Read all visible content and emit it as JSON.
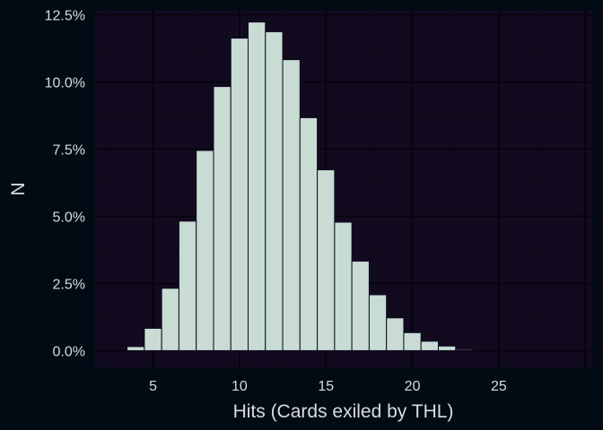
{
  "chart_data": {
    "type": "bar",
    "title": "",
    "xlabel": "Hits (Cards exiled by THL)",
    "ylabel": "N",
    "xlim": [
      1.6,
      30.4
    ],
    "ylim": [
      -0.0062,
      0.1265
    ],
    "x_ticks": [
      5,
      10,
      15,
      20,
      25
    ],
    "x_tick_labels": [
      "5",
      "10",
      "15",
      "20",
      "25"
    ],
    "y_ticks": [
      0,
      0.025,
      0.05,
      0.075,
      0.1,
      0.125
    ],
    "y_tick_labels": [
      "0.0%",
      "2.5%",
      "5.0%",
      "7.5%",
      "10.0%",
      "12.5%"
    ],
    "grid": true,
    "bin_width": 1,
    "x": [
      4,
      5,
      6,
      7,
      8,
      9,
      10,
      11,
      12,
      13,
      14,
      15,
      16,
      17,
      18,
      19,
      20,
      21,
      22,
      23
    ],
    "values": [
      0.0015,
      0.0083,
      0.0232,
      0.0482,
      0.0745,
      0.0983,
      0.1163,
      0.1223,
      0.1187,
      0.1083,
      0.0867,
      0.0673,
      0.0478,
      0.0333,
      0.0208,
      0.0122,
      0.0067,
      0.0035,
      0.0017,
      0.0004
    ],
    "colors": {
      "background": "#020a14",
      "panel": "#120b20",
      "grid_major": "#06040c",
      "grid_minor": "#0c0816",
      "bar_fill": "#c8dcd4",
      "bar_stroke": "#120b20",
      "text": "#d6dde0"
    }
  }
}
